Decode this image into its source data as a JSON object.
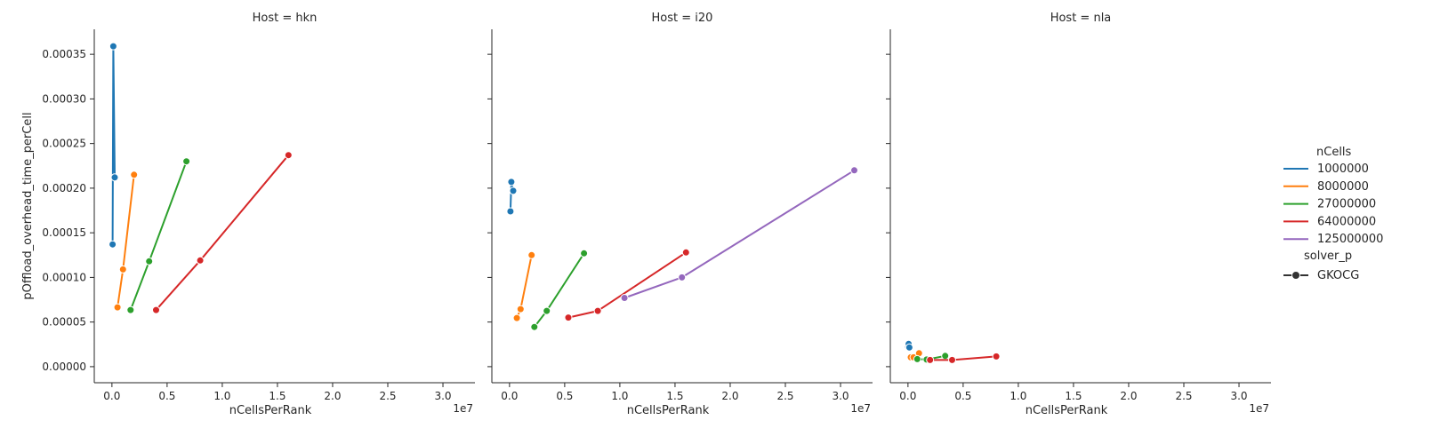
{
  "chart_data": {
    "type": "line",
    "facet_titles": [
      "Host = hkn",
      "Host = i20",
      "Host = nla"
    ],
    "xlabel": "nCellsPerRank",
    "ylabel": "pOffload_overhead_time_perCell",
    "x_offset_label": "1e7",
    "x_ticks": [
      0,
      5000000,
      10000000,
      15000000,
      20000000,
      25000000,
      30000000
    ],
    "x_tick_labels": [
      "0.0",
      "0.5",
      "1.0",
      "1.5",
      "2.0",
      "2.5",
      "3.0"
    ],
    "y_ticks": [
      0,
      5e-05,
      0.0001,
      0.00015,
      0.0002,
      0.00025,
      0.0003,
      0.00035
    ],
    "y_tick_labels": [
      "0.00000",
      "0.00005",
      "0.00010",
      "0.00015",
      "0.00020",
      "0.00025",
      "0.00030",
      "0.00035"
    ],
    "xlim": [
      -1600000,
      32900000
    ],
    "ylim": [
      -1.8e-05,
      0.000378
    ],
    "legend": {
      "title_hue": "nCells",
      "title_style": "solver_p",
      "style_entries": [
        "GKOCG"
      ],
      "placement": "right"
    },
    "series": [
      {
        "name": "1000000",
        "color": "#1f77b4"
      },
      {
        "name": "8000000",
        "color": "#ff7f0e"
      },
      {
        "name": "27000000",
        "color": "#2ca02c"
      },
      {
        "name": "64000000",
        "color": "#d62728"
      },
      {
        "name": "125000000",
        "color": "#9467bd"
      }
    ],
    "facets": [
      {
        "host": "hkn",
        "lines": [
          {
            "series": 0,
            "points": [
              [
                62500,
                0.000137
              ],
              [
                125000,
                0.000359
              ],
              [
                250000,
                0.000212
              ]
            ]
          },
          {
            "series": 1,
            "points": [
              [
                500000,
                6.65e-05
              ],
              [
                1000000,
                0.000109
              ],
              [
                2000000,
                0.000215
              ]
            ]
          },
          {
            "series": 2,
            "points": [
              [
                1687500,
                6.35e-05
              ],
              [
                3375000,
                0.000118
              ],
              [
                6750000,
                0.00023
              ]
            ]
          },
          {
            "series": 3,
            "points": [
              [
                4000000,
                6.35e-05
              ],
              [
                8000000,
                0.000119
              ],
              [
                16000000,
                0.000237
              ]
            ]
          }
        ]
      },
      {
        "host": "i20",
        "lines": [
          {
            "series": 0,
            "points": [
              [
                83333,
                0.000174
              ],
              [
                166667,
                0.000207
              ],
              [
                333333,
                0.000197
              ]
            ]
          },
          {
            "series": 1,
            "points": [
              [
                666667,
                5.45e-05
              ],
              [
                1000000,
                6.45e-05
              ],
              [
                2000000,
                0.000125
              ]
            ]
          },
          {
            "series": 2,
            "points": [
              [
                2250000,
                4.45e-05
              ],
              [
                3375000,
                6.25e-05
              ],
              [
                6750000,
                0.000127
              ]
            ]
          },
          {
            "series": 3,
            "points": [
              [
                5333333,
                5.5e-05
              ],
              [
                8000000,
                6.25e-05
              ],
              [
                16000000,
                0.000128
              ]
            ]
          },
          {
            "series": 4,
            "points": [
              [
                10416667,
                7.7e-05
              ],
              [
                15625000,
                0.0001
              ],
              [
                31250000,
                0.00022
              ]
            ]
          }
        ]
      },
      {
        "host": "nla",
        "lines": [
          {
            "series": 0,
            "points": [
              [
                31250,
                2.2e-05
              ],
              [
                62500,
                2.55e-05
              ],
              [
                125000,
                2.15e-05
              ]
            ]
          },
          {
            "series": 1,
            "points": [
              [
                250000,
                1.05e-05
              ],
              [
                500000,
                1.05e-05
              ],
              [
                1000000,
                1.5e-05
              ]
            ]
          },
          {
            "series": 2,
            "points": [
              [
                843750,
                8.5e-06
              ],
              [
                1687500,
                8e-06
              ],
              [
                3375000,
                1.2e-05
              ]
            ]
          },
          {
            "series": 3,
            "points": [
              [
                2000000,
                7.5e-06
              ],
              [
                4000000,
                7.5e-06
              ],
              [
                8000000,
                1.15e-05
              ]
            ]
          }
        ]
      }
    ]
  }
}
